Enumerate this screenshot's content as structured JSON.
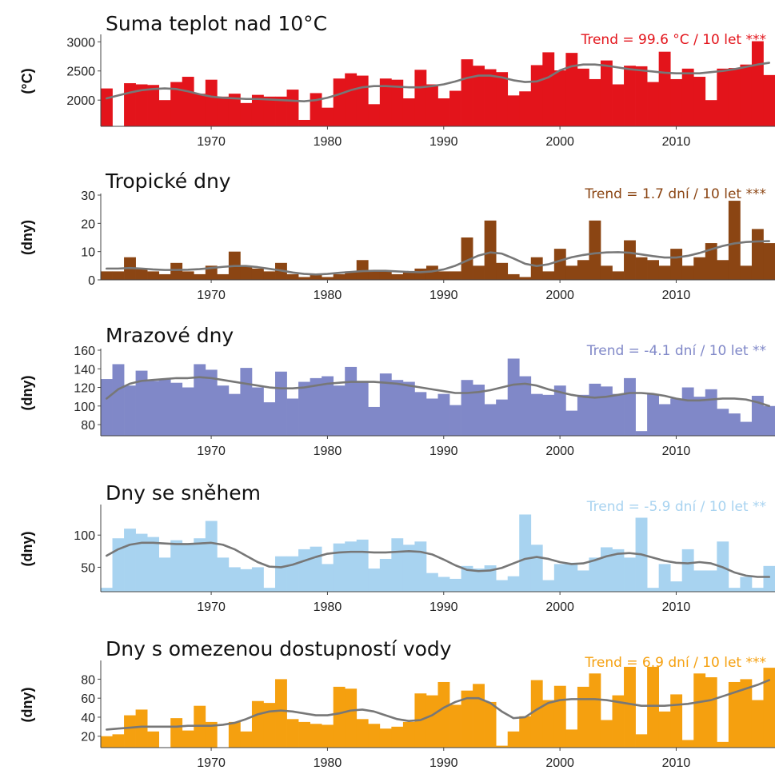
{
  "chart_data": [
    {
      "type": "bar",
      "title": "Suma teplot nad 10°C",
      "trend_text": "Trend = 99.6 °C / 10 let ***",
      "ylabel": "(°C)",
      "color": "#e3141b",
      "ylim": [
        1550,
        3100
      ],
      "yticks": [
        2000,
        2500,
        3000
      ],
      "x_start": 1961,
      "xticks": [
        1970,
        1980,
        1990,
        2000,
        2010
      ],
      "values": [
        2200,
        1550,
        2290,
        2270,
        2260,
        2000,
        2310,
        2400,
        2110,
        2350,
        2060,
        2110,
        1950,
        2090,
        2060,
        2060,
        2180,
        1660,
        2120,
        1870,
        2370,
        2460,
        2420,
        1930,
        2370,
        2350,
        2030,
        2520,
        2270,
        2030,
        2160,
        2700,
        2590,
        2530,
        2480,
        2080,
        2150,
        2600,
        2820,
        2510,
        2810,
        2540,
        2360,
        2680,
        2270,
        2590,
        2580,
        2310,
        2830,
        2360,
        2540,
        2400,
        2000,
        2540,
        2550,
        2610,
        3010,
        2430
      ],
      "trend": [
        2030,
        2080,
        2130,
        2170,
        2190,
        2200,
        2190,
        2150,
        2100,
        2060,
        2040,
        2030,
        2020,
        2020,
        2010,
        2000,
        1990,
        1980,
        2000,
        2040,
        2100,
        2170,
        2220,
        2240,
        2240,
        2230,
        2220,
        2220,
        2240,
        2270,
        2320,
        2380,
        2420,
        2420,
        2390,
        2340,
        2310,
        2320,
        2390,
        2510,
        2580,
        2610,
        2610,
        2590,
        2560,
        2530,
        2510,
        2490,
        2470,
        2460,
        2460,
        2460,
        2480,
        2500,
        2530,
        2570,
        2610,
        2640
      ]
    },
    {
      "type": "bar",
      "title": "Tropické dny",
      "trend_text": "Trend = 1.7 dní / 10 let ***",
      "ylabel": "(dny)",
      "color": "#8b4513",
      "ylim": [
        0,
        30
      ],
      "yticks": [
        0,
        10,
        20,
        30
      ],
      "x_start": 1961,
      "xticks": [
        1970,
        1980,
        1990,
        2000,
        2010
      ],
      "values": [
        3,
        3,
        8,
        4,
        3,
        2,
        6,
        3,
        2,
        5,
        2,
        10,
        5,
        4,
        3,
        6,
        2,
        1,
        2,
        1,
        2,
        3,
        7,
        3,
        3,
        2,
        3,
        4,
        5,
        3,
        3,
        15,
        5,
        21,
        6,
        2,
        1,
        8,
        3,
        11,
        5,
        7,
        21,
        5,
        3,
        14,
        8,
        7,
        5,
        11,
        5,
        8,
        13,
        7,
        28,
        5,
        18,
        13
      ],
      "trend": [
        4,
        4,
        4.2,
        4,
        3.7,
        3.5,
        3.5,
        3.6,
        3.8,
        4.2,
        4.6,
        4.9,
        4.9,
        4.5,
        3.9,
        3.3,
        2.6,
        2.1,
        1.9,
        2.1,
        2.5,
        2.8,
        3.1,
        3.2,
        3.2,
        3,
        2.8,
        2.7,
        3,
        3.7,
        5,
        6.8,
        8.6,
        9.7,
        9.3,
        7.6,
        5.7,
        4.9,
        5.5,
        6.8,
        8,
        8.8,
        9.4,
        9.7,
        9.8,
        9.6,
        9,
        8.4,
        7.9,
        7.9,
        8.5,
        9.5,
        10.8,
        12,
        12.9,
        13.4,
        13.6,
        13.7
      ]
    },
    {
      "type": "bar",
      "title": "Mrazové dny",
      "trend_text": "Trend = -4.1 dní / 10 let **",
      "ylabel": "(dny)",
      "color": "#8088c8",
      "ylim": [
        68,
        160
      ],
      "yticks": [
        80,
        100,
        120,
        140,
        160
      ],
      "x_start": 1961,
      "xticks": [
        1970,
        1980,
        1990,
        2000,
        2010
      ],
      "values": [
        129,
        145,
        122,
        138,
        127,
        129,
        125,
        120,
        145,
        139,
        122,
        113,
        141,
        120,
        104,
        137,
        108,
        126,
        130,
        132,
        122,
        142,
        127,
        99,
        135,
        128,
        126,
        115,
        108,
        113,
        101,
        128,
        123,
        102,
        107,
        151,
        132,
        113,
        112,
        122,
        95,
        112,
        124,
        121,
        113,
        130,
        73,
        113,
        102,
        108,
        120,
        110,
        118,
        97,
        92,
        83,
        111,
        100
      ],
      "trend": [
        108,
        118,
        124,
        127,
        128,
        129,
        130,
        130,
        131,
        130,
        128,
        126,
        124,
        122,
        120,
        119,
        119,
        120,
        122,
        124,
        125,
        126,
        126,
        126,
        125,
        124,
        122,
        120,
        118,
        116,
        114,
        114,
        115,
        117,
        120,
        123,
        124,
        122,
        118,
        115,
        112,
        110,
        109,
        110,
        112,
        114,
        114,
        113,
        111,
        108,
        106,
        106,
        107,
        108,
        108,
        107,
        104,
        100
      ]
    },
    {
      "type": "bar",
      "title": "Dny se sněhem",
      "trend_text": "Trend = -5.9 dní / 10 let **",
      "ylabel": "(dny)",
      "color": "#a8d3f0",
      "ylim": [
        12,
        145
      ],
      "yticks": [
        50,
        100
      ],
      "x_start": 1961,
      "xticks": [
        1970,
        1980,
        1990,
        2000,
        2010
      ],
      "values": [
        18,
        95,
        110,
        102,
        97,
        65,
        92,
        87,
        95,
        122,
        65,
        50,
        47,
        50,
        18,
        67,
        67,
        78,
        82,
        55,
        87,
        90,
        93,
        48,
        63,
        95,
        85,
        90,
        41,
        35,
        32,
        52,
        48,
        53,
        30,
        36,
        132,
        85,
        30,
        55,
        57,
        45,
        65,
        81,
        78,
        65,
        127,
        18,
        55,
        28,
        78,
        45,
        45,
        90,
        18,
        35,
        18,
        52
      ],
      "trend": [
        68,
        78,
        85,
        88,
        88,
        87,
        86,
        86,
        87,
        88,
        85,
        78,
        68,
        58,
        51,
        50,
        54,
        60,
        66,
        71,
        73,
        74,
        74,
        73,
        73,
        74,
        75,
        74,
        70,
        62,
        53,
        46,
        44,
        45,
        49,
        56,
        63,
        66,
        63,
        58,
        55,
        56,
        61,
        67,
        71,
        72,
        70,
        65,
        60,
        57,
        56,
        58,
        56,
        50,
        42,
        37,
        35,
        35
      ]
    },
    {
      "type": "bar",
      "title": "Dny s omezenou dostupností vody",
      "trend_text": "Trend = 6.9 dní / 10 let ***",
      "ylabel": "(dny)",
      "color": "#f5a00f",
      "ylim": [
        8,
        98
      ],
      "yticks": [
        20,
        40,
        60,
        80
      ],
      "x_start": 1961,
      "xticks": [
        1970,
        1980,
        1990,
        2000,
        2010
      ],
      "values": [
        20,
        22,
        42,
        48,
        25,
        8,
        39,
        26,
        52,
        35,
        8,
        35,
        25,
        57,
        55,
        80,
        38,
        35,
        33,
        32,
        72,
        70,
        38,
        33,
        28,
        30,
        35,
        65,
        63,
        77,
        53,
        68,
        75,
        56,
        10,
        25,
        41,
        79,
        58,
        73,
        27,
        72,
        86,
        37,
        63,
        93,
        22,
        93,
        46,
        64,
        16,
        86,
        82,
        14,
        77,
        80,
        58,
        92
      ],
      "trend": [
        27,
        28,
        29,
        30,
        30,
        30,
        30,
        31,
        31,
        31,
        32,
        34,
        38,
        43,
        46,
        47,
        46,
        44,
        42,
        42,
        44,
        47,
        48,
        46,
        42,
        38,
        36,
        37,
        42,
        50,
        56,
        60,
        60,
        55,
        46,
        39,
        40,
        48,
        55,
        58,
        59,
        59,
        59,
        58,
        56,
        54,
        52,
        52,
        52,
        53,
        54,
        56,
        58,
        62,
        66,
        70,
        74,
        79
      ]
    }
  ]
}
